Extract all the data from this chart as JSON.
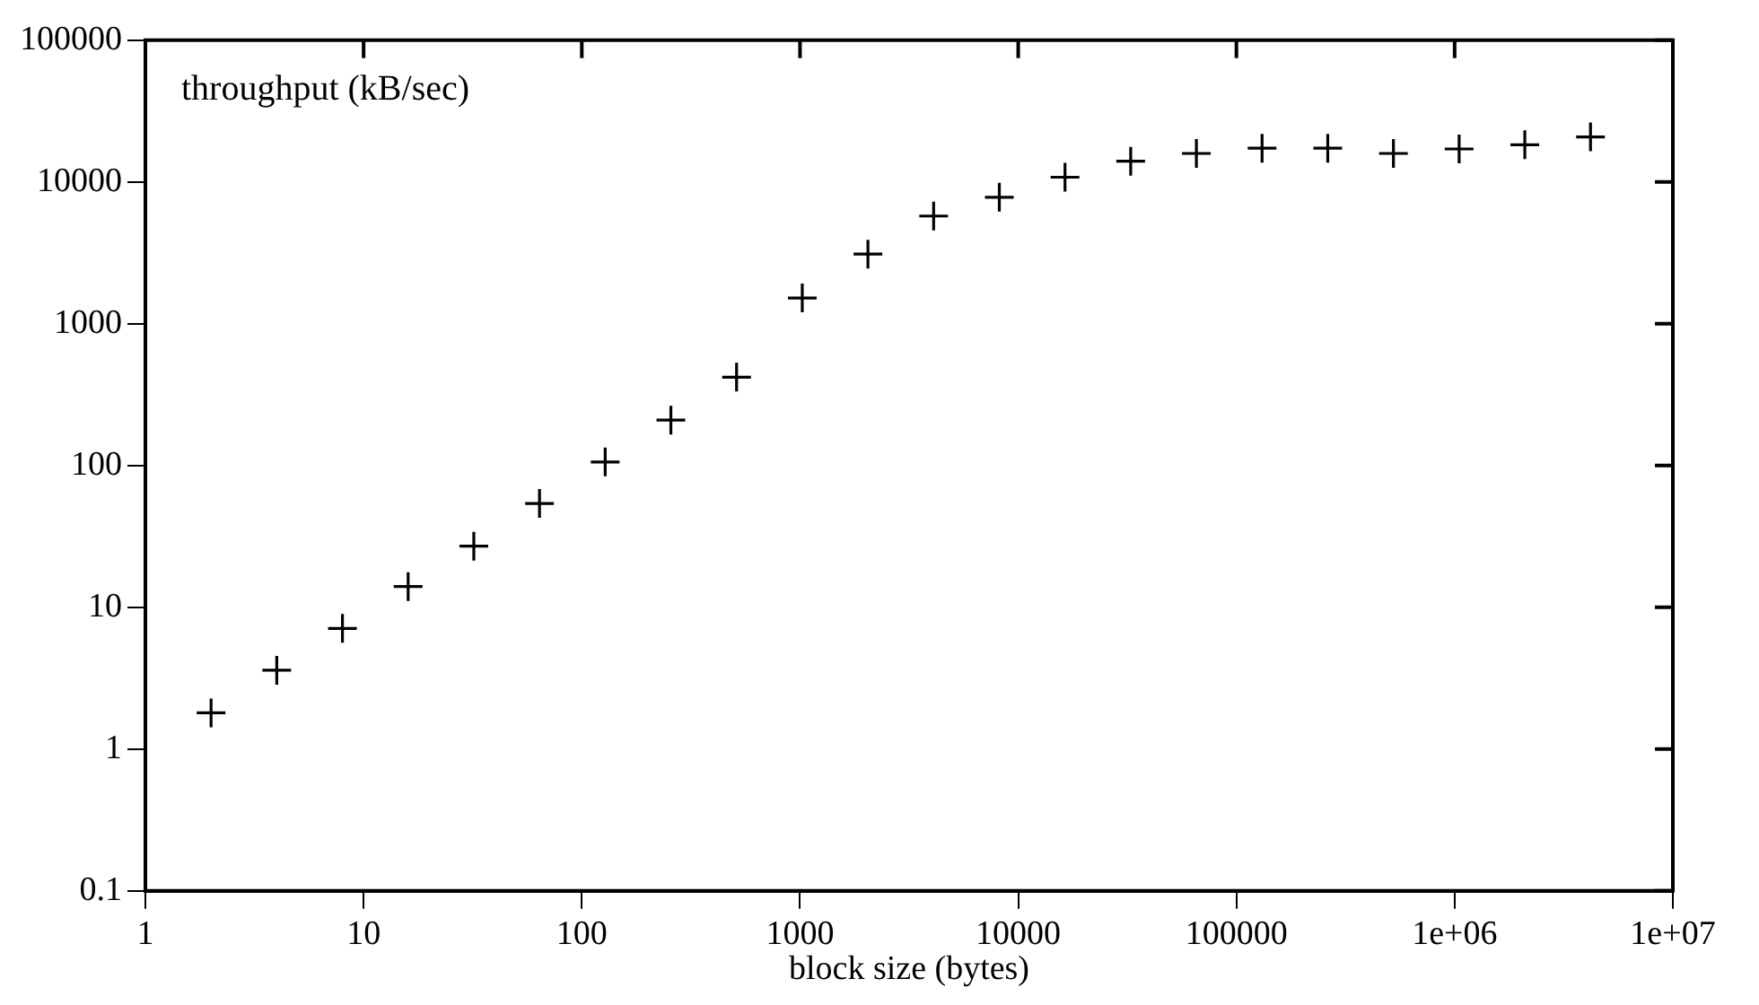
{
  "chart_data": {
    "type": "scatter",
    "xlabel": "block size (bytes)",
    "annotations": [
      "throughput (kB/sec)"
    ],
    "x": [
      2,
      4,
      8,
      16,
      32,
      64,
      128,
      256,
      512,
      1024,
      2048,
      4096,
      8192,
      16384,
      32768,
      65536,
      131072,
      262144,
      524288,
      1048576,
      2097152,
      4194304
    ],
    "series": [
      {
        "color": "#000000",
        "values": [
          1.8,
          3.6,
          7.1,
          14,
          27,
          54,
          106,
          209,
          420,
          1520,
          3100,
          5750,
          7800,
          10800,
          14000,
          15900,
          17300,
          17300,
          15900,
          17100,
          18300,
          20800
        ]
      }
    ],
    "log": "xy",
    "marker": "cross",
    "grid": false,
    "legend": false,
    "xlim": [
      1,
      10000000
    ],
    "xticks": [
      1,
      10,
      100,
      1000,
      10000,
      100000,
      {
        "value": 1000000,
        "label": "1e+06"
      },
      {
        "value": 10000000,
        "label": "1e+07"
      }
    ],
    "ylim": [
      0.1,
      100000
    ],
    "yticks": [
      0.1,
      1,
      10,
      100,
      1000,
      10000,
      100000
    ]
  }
}
